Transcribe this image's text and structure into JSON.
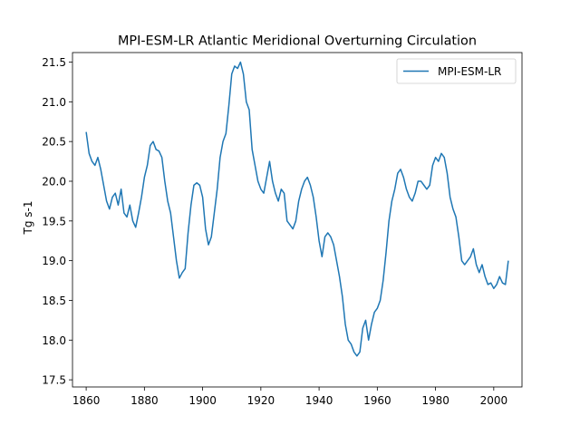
{
  "chart_data": {
    "type": "line",
    "title": "MPI-ESM-LR Atlantic Meridional Overturning Circulation",
    "xlabel": "",
    "ylabel": "Tg s-1",
    "xlim": [
      1855.3,
      2009.7
    ],
    "ylim": [
      17.41,
      21.62
    ],
    "xticks": [
      1860,
      1880,
      1900,
      1920,
      1940,
      1960,
      1980,
      2000
    ],
    "yticks": [
      17.5,
      18.0,
      18.5,
      19.0,
      19.5,
      20.0,
      20.5,
      21.0,
      21.5
    ],
    "grid": false,
    "legend": "top-right",
    "line_color": "#1f77b4",
    "series": [
      {
        "name": "MPI-ESM-LR",
        "x": [
          1860,
          1861,
          1862,
          1863,
          1864,
          1865,
          1866,
          1867,
          1868,
          1869,
          1870,
          1871,
          1872,
          1873,
          1874,
          1875,
          1876,
          1877,
          1878,
          1879,
          1880,
          1881,
          1882,
          1883,
          1884,
          1885,
          1886,
          1887,
          1888,
          1889,
          1890,
          1891,
          1892,
          1893,
          1894,
          1895,
          1896,
          1897,
          1898,
          1899,
          1900,
          1901,
          1902,
          1903,
          1904,
          1905,
          1906,
          1907,
          1908,
          1909,
          1910,
          1911,
          1912,
          1913,
          1914,
          1915,
          1916,
          1917,
          1918,
          1919,
          1920,
          1921,
          1922,
          1923,
          1924,
          1925,
          1926,
          1927,
          1928,
          1929,
          1930,
          1931,
          1932,
          1933,
          1934,
          1935,
          1936,
          1937,
          1938,
          1939,
          1940,
          1941,
          1942,
          1943,
          1944,
          1945,
          1946,
          1947,
          1948,
          1949,
          1950,
          1951,
          1952,
          1953,
          1954,
          1955,
          1956,
          1957,
          1958,
          1959,
          1960,
          1961,
          1962,
          1963,
          1964,
          1965,
          1966,
          1967,
          1968,
          1969,
          1970,
          1971,
          1972,
          1973,
          1974,
          1975,
          1976,
          1977,
          1978,
          1979,
          1980,
          1981,
          1982,
          1983,
          1984,
          1985,
          1986,
          1987,
          1988,
          1989,
          1990,
          1991,
          1992,
          1993,
          1994,
          1995,
          1996,
          1997,
          1998,
          1999,
          2000,
          2001,
          2002,
          2003,
          2004,
          2005
        ],
        "y": [
          20.62,
          20.35,
          20.25,
          20.2,
          20.3,
          20.15,
          19.95,
          19.75,
          19.65,
          19.8,
          19.85,
          19.7,
          19.9,
          19.6,
          19.55,
          19.7,
          19.5,
          19.42,
          19.6,
          19.8,
          20.05,
          20.2,
          20.45,
          20.5,
          20.4,
          20.38,
          20.3,
          20.0,
          19.75,
          19.6,
          19.3,
          19.0,
          18.78,
          18.85,
          18.9,
          19.35,
          19.7,
          19.95,
          19.98,
          19.95,
          19.8,
          19.4,
          19.2,
          19.3,
          19.6,
          19.9,
          20.3,
          20.5,
          20.6,
          20.95,
          21.35,
          21.45,
          21.42,
          21.5,
          21.35,
          21.0,
          20.9,
          20.4,
          20.2,
          20.0,
          19.9,
          19.85,
          20.05,
          20.25,
          20.0,
          19.85,
          19.75,
          19.9,
          19.85,
          19.5,
          19.45,
          19.4,
          19.5,
          19.75,
          19.9,
          20.0,
          20.05,
          19.95,
          19.8,
          19.55,
          19.25,
          19.05,
          19.3,
          19.35,
          19.3,
          19.2,
          19.0,
          18.8,
          18.55,
          18.2,
          18.0,
          17.95,
          17.85,
          17.8,
          17.85,
          18.15,
          18.25,
          18.0,
          18.2,
          18.35,
          18.4,
          18.5,
          18.75,
          19.1,
          19.5,
          19.75,
          19.9,
          20.1,
          20.15,
          20.05,
          19.9,
          19.8,
          19.75,
          19.85,
          20.0,
          20.0,
          19.95,
          19.9,
          19.95,
          20.2,
          20.3,
          20.25,
          20.35,
          20.3,
          20.1,
          19.8,
          19.65,
          19.55,
          19.3,
          19.0,
          18.95,
          19.0,
          19.05,
          19.15,
          18.95,
          18.85,
          18.95,
          18.8,
          18.7,
          18.72,
          18.65,
          18.7,
          18.8,
          18.72,
          18.7,
          19.0
        ]
      }
    ]
  }
}
